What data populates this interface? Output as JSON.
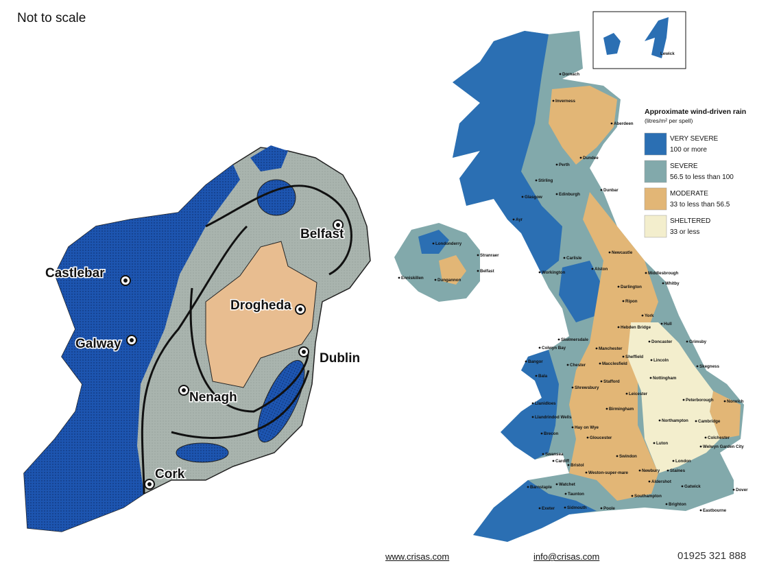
{
  "header": {
    "note": "Not to scale"
  },
  "ireland_map": {
    "labels": [
      "Castlebar",
      "Galway",
      "Belfast",
      "Drogheda",
      "Dublin",
      "Nenagh",
      "Cork"
    ]
  },
  "uk_map": {
    "inset_label": "Lewick",
    "places": [
      "Dornach",
      "Inverness",
      "Aberdeen",
      "Dundee",
      "Perth",
      "Stirling",
      "Dunbar",
      "Glasgow",
      "Edinburgh",
      "Ayr",
      "Londonderry",
      "Stranraer",
      "Belfast",
      "Enniskillen",
      "Dungannon",
      "Carlisle",
      "Newcastle",
      "Workington",
      "Alston",
      "Middlesbrough",
      "Darlington",
      "Whitby",
      "Ripon",
      "York",
      "Hull",
      "Hebden Bridge",
      "Doncaster",
      "Grimsby",
      "Skelmersdale",
      "Colwyn Bay",
      "Manchester",
      "Sheffield",
      "Lincoln",
      "Bangor",
      "Chester",
      "Macclesfield",
      "Skegness",
      "Bala",
      "Nottingham",
      "Stafford",
      "Shrewsbury",
      "Leicester",
      "Peterborough",
      "Norwich",
      "Llanidloes",
      "Birmingham",
      "Llandrindod Wells",
      "Northampton",
      "Cambridge",
      "Hay on Wye",
      "Brecon",
      "Gloucester",
      "Colchester",
      "Luton",
      "Welwyn Garden City",
      "Swansea",
      "Swindon",
      "London",
      "Cardiff",
      "Bristol",
      "Staines",
      "Newbury",
      "Weston-super-mare",
      "Aldershot",
      "Gatwick",
      "Watchet",
      "Barnstaple",
      "Taunton",
      "Dover",
      "Southampton",
      "Exeter",
      "Sidmouth",
      "Poole",
      "Brighton",
      "Eastbourne"
    ]
  },
  "legend": {
    "title": "Approximate wind-driven rain",
    "subtitle": "(litres/m² per spell)",
    "items": [
      {
        "name": "VERY SEVERE",
        "range": "100 or more",
        "color": "#2b6fb3"
      },
      {
        "name": "SEVERE",
        "range": "56.5 to less than 100",
        "color": "#82a9ab"
      },
      {
        "name": "MODERATE",
        "range": "33 to less than 56.5",
        "color": "#e2b676"
      },
      {
        "name": "SHELTERED",
        "range": "33 or less",
        "color": "#f3eecd"
      }
    ]
  },
  "footer": {
    "website": "www.crisas.com",
    "email": "info@crisas.com",
    "phone": "01925 321 888"
  }
}
